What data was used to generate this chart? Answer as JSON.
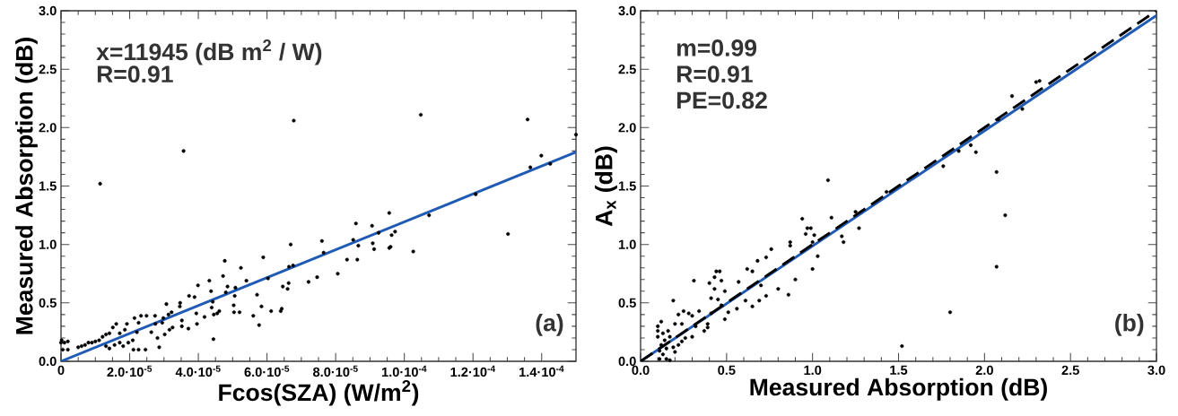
{
  "chart_data": [
    {
      "type": "scatter",
      "xlabel": "Fcos(SZA) (W/m$^{2}$)",
      "ylabel": "Measured Absorption (dB)",
      "xlim": [
        0,
        0.00015
      ],
      "ylim": [
        0,
        3.0
      ],
      "xticks": [
        0,
        {
          "value": 2e-05,
          "label": "2.0·10$^{-5}$"
        },
        {
          "value": 4e-05,
          "label": "4.0·10$^{-5}$"
        },
        {
          "value": 6e-05,
          "label": "6.0·10$^{-5}$"
        },
        {
          "value": 8e-05,
          "label": "8.0·10$^{-5}$"
        },
        {
          "value": 0.0001,
          "label": "1.0·10$^{-4}$"
        },
        {
          "value": 0.00012,
          "label": "1.2·10$^{-4}$"
        },
        {
          "value": 0.00014,
          "label": "1.4·10$^{-4}$"
        }
      ],
      "yticks": [
        {
          "value": 0,
          "label": "0.0"
        },
        0.5,
        {
          "value": 1,
          "label": "1.0"
        },
        1.5,
        {
          "value": 2,
          "label": "2.0"
        },
        2.5,
        {
          "value": 3,
          "label": "3.0"
        }
      ],
      "annotations": [
        "x=11945 (dB m$^{2}$ / W)",
        "R=0.91",
        "(a)"
      ],
      "series": [
        {
          "marker": "circle",
          "color": "#000000",
          "x": [
            1.14e-05,
            3.57e-05,
            6.78e-05,
            0.0001048,
            0.0001359,
            0.00015,
            0.0001399,
            0.0001367,
            0.0001425,
            0.0001208,
            0.0001302,
            0.0001072,
            0.0001026,
            9.56e-05,
            9.73e-05,
            9.63e-05,
            9.6e-05,
            9.56e-05,
            9.06e-05,
            9.25e-05,
            9.08e-05,
            9.12e-05,
            8.59e-05,
            8.51e-05,
            8.66e-05,
            8.63e-05,
            8.33e-05,
            8.06e-05,
            7.6e-05,
            7.65e-05,
            7.46e-05,
            7.21e-05,
            6.69e-05,
            6.64e-05,
            6.76e-05,
            6.63e-05,
            6.6e-05,
            6.46e-05,
            6.43e-05,
            6.4e-05,
            5.89e-05,
            6.03e-05,
            6.12e-05,
            5.71e-05,
            5.84e-05,
            5.77e-05,
            5.6e-05,
            5.24e-05,
            5.4e-05,
            5.08e-05,
            5.06e-05,
            5.03e-05,
            5.04e-05,
            5.2e-05,
            4.77e-05,
            4.72e-05,
            4.85e-05,
            4.8e-05,
            4.61e-05,
            4.55e-05,
            4.37e-05,
            4.32e-05,
            4.42e-05,
            4.39e-05,
            4.44e-05,
            4.45e-05,
            4.18e-05,
            3.99e-05,
            3.89e-05,
            3.94e-05,
            3.73e-05,
            3.96e-05,
            3.71e-05,
            3.52e-05,
            3.52e-05,
            3.47e-05,
            3.46e-05,
            3.22e-05,
            3.13e-05,
            3.07e-05,
            3.25e-05,
            3.16e-05,
            2.98e-05,
            2.95e-05,
            3.02e-05,
            2.81e-05,
            2.86e-05,
            2.74e-05,
            2.75e-05,
            2.63e-05,
            2.49e-05,
            2.46e-05,
            2.33e-05,
            2.26e-05,
            2.21e-05,
            2.14e-05,
            2.09e-05,
            1.92e-05,
            1.86e-05,
            1.71e-05,
            1.61e-05,
            1.51e-05,
            1.41e-05,
            1.31e-05,
            1.21e-05,
            1.11e-05,
            1e-05,
            9e-06,
            8e-06,
            7e-06,
            6e-06,
            5e-06,
            1.31e-05,
            1.41e-05,
            1.56e-05,
            1.71e-05,
            1.81e-05,
            1.96e-05,
            2.11e-05,
            2.26e-05,
            0,
            5e-07,
            1e-06,
            2e-06,
            2e-06,
            2e-07
          ],
          "values": [
            1.52,
            1.8,
            2.06,
            2.11,
            2.07,
            1.94,
            1.76,
            1.66,
            1.69,
            1.43,
            1.09,
            1.25,
            0.94,
            1.27,
            1.11,
            1.08,
            0.98,
            0.97,
            1.16,
            1.1,
            1.01,
            0.96,
            1.18,
            1.04,
            0.99,
            0.87,
            0.87,
            0.75,
            1.03,
            0.93,
            0.72,
            0.68,
            1.0,
            0.81,
            0.82,
            0.67,
            0.62,
            0.64,
            0.45,
            0.43,
            0.89,
            0.71,
            0.43,
            0.57,
            0.47,
            0.31,
            0.39,
            0.8,
            0.69,
            0.63,
            0.56,
            0.48,
            0.42,
            0.42,
            0.86,
            0.73,
            0.64,
            0.59,
            0.43,
            0.41,
            0.6,
            0.69,
            0.51,
            0.46,
            0.19,
            0.4,
            0.38,
            0.65,
            0.55,
            0.41,
            0.56,
            0.32,
            0.28,
            0.3,
            0.35,
            0.5,
            0.47,
            0.42,
            0.4,
            0.49,
            0.29,
            0.27,
            0.37,
            0.33,
            0.23,
            0.2,
            0.12,
            0.39,
            0.32,
            0.25,
            0.39,
            0.1,
            0.39,
            0.33,
            0.25,
            0.37,
            0.18,
            0.32,
            0.27,
            0.24,
            0.32,
            0.29,
            0.24,
            0.23,
            0.21,
            0.18,
            0.17,
            0.16,
            0.16,
            0.14,
            0.13,
            0.12,
            0.13,
            0.11,
            0.14,
            0.16,
            0.13,
            0.16,
            0.1,
            0.1,
            0.16,
            0.1,
            0.16,
            0.17,
            0.1,
            0.18
          ]
        },
        {
          "type": "line",
          "marker": "none",
          "color": "#1f5bb5",
          "x": [
            0,
            0.00015
          ],
          "values": [
            0,
            1.79
          ]
        }
      ]
    },
    {
      "type": "scatter",
      "xlabel": "Measured Absorption (dB)",
      "ylabel": "A$_{x}$ (dB)",
      "xlim": [
        0,
        3.0
      ],
      "ylim": [
        0,
        3.0
      ],
      "xticks": [
        {
          "value": 0,
          "label": "0.0"
        },
        0.5,
        {
          "value": 1,
          "label": "1.0"
        },
        1.5,
        {
          "value": 2,
          "label": "2.0"
        },
        2.5,
        {
          "value": 3,
          "label": "3.0"
        }
      ],
      "yticks": [
        {
          "value": 0,
          "label": "0.0"
        },
        0.5,
        {
          "value": 1,
          "label": "1.0"
        },
        1.5,
        {
          "value": 2,
          "label": "2.0"
        },
        2.5,
        {
          "value": 3,
          "label": "3.0"
        }
      ],
      "annotations": [
        "m=0.99",
        "R=0.91",
        "PE=0.82",
        "(b)"
      ],
      "series": [
        {
          "marker": "circle",
          "color": "#000000",
          "x": [
            1.09,
            2.07,
            2.12,
            2.07,
            1.8,
            1.52,
            2.16,
            2.3,
            2.32,
            2.22,
            2.08,
            1.92,
            1.95,
            1.85,
            1.76,
            1.43,
            1.25,
            1.27,
            1.11,
            1.17,
            1.18,
            0.94,
            0.97,
            0.99,
            0.96,
            1.01,
            1.0,
            1.03,
            1.0,
            0.9,
            0.87,
            0.87,
            0.76,
            0.73,
            0.68,
            0.65,
            0.62,
            0.7,
            0.73,
            0.69,
            0.86,
            0.8,
            0.57,
            0.65,
            0.61,
            0.56,
            0.46,
            0.44,
            0.43,
            0.47,
            0.4,
            0.43,
            0.49,
            0.41,
            0.45,
            0.47,
            0.51,
            0.49,
            0.31,
            0.19,
            0.41,
            0.39,
            0.39,
            0.37,
            0.34,
            0.3,
            0.28,
            0.25,
            0.22,
            0.32,
            0.3,
            0.26,
            0.24,
            0.2,
            0.12,
            0.1,
            0.1,
            0.1,
            0.13,
            0.16,
            0.17,
            0.14,
            0.12,
            0.15,
            0.19,
            0.22,
            0.2,
            0.13,
            0.11,
            0.15,
            0.17,
            0.11,
            0.24
          ],
          "values": [
            1.55,
            1.62,
            1.25,
            0.81,
            0.42,
            0.13,
            2.27,
            2.39,
            2.4,
            2.16,
            2.07,
            1.85,
            1.79,
            1.8,
            1.67,
            1.45,
            1.28,
            1.14,
            1.23,
            1.07,
            1.02,
            1.22,
            1.14,
            1.14,
            1.09,
            1.08,
            1.02,
            0.9,
            0.79,
            0.7,
            1.02,
            0.99,
            0.96,
            0.89,
            0.86,
            0.77,
            0.79,
            0.65,
            0.56,
            0.52,
            0.57,
            0.62,
            0.68,
            0.47,
            0.52,
            0.45,
            0.77,
            0.77,
            0.72,
            0.69,
            0.67,
            0.62,
            0.6,
            0.54,
            0.53,
            0.48,
            0.42,
            0.36,
            0.69,
            0.52,
            0.41,
            0.32,
            0.29,
            0.26,
            0.43,
            0.39,
            0.41,
            0.43,
            0.4,
            0.3,
            0.21,
            0.2,
            0.32,
            0.32,
            0.34,
            0.3,
            0.26,
            0.21,
            0.24,
            0.26,
            0.21,
            0.18,
            0.14,
            0.11,
            0.12,
            0.14,
            0.08,
            0.06,
            0.02,
            0.02,
            0.01,
            0.09,
            0.17
          ]
        },
        {
          "type": "line",
          "marker": "none",
          "color": "#1f5bb5",
          "x": [
            0,
            3.0
          ],
          "values": [
            0,
            2.96
          ]
        },
        {
          "type": "line",
          "marker": "none",
          "color": "#000000",
          "line_style": "dashed",
          "x": [
            0,
            3.0
          ],
          "values": [
            0,
            3.0
          ]
        }
      ]
    }
  ]
}
